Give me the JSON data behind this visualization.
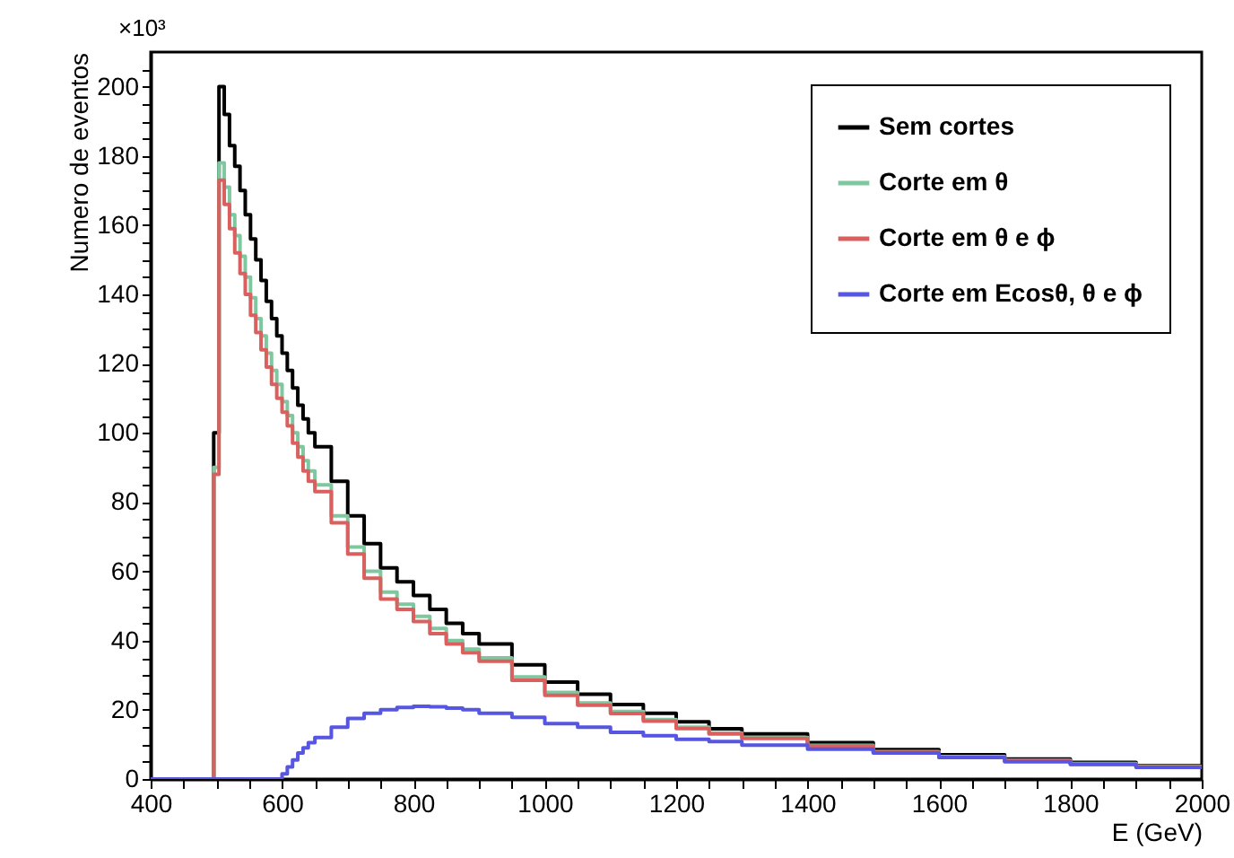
{
  "chart_data": {
    "type": "step",
    "ylabel": "Numero de eventos",
    "xlabel": "E (GeV)",
    "annotations": [
      "×10³"
    ],
    "legend": "top right",
    "xlim": [
      400,
      2000
    ],
    "ylim": [
      0,
      210
    ],
    "xticks": [
      400,
      {
        "value": 450,
        "label": null
      },
      {
        "value": 500,
        "label": null
      },
      {
        "value": 550,
        "label": null
      },
      600,
      {
        "value": 650,
        "label": null
      },
      {
        "value": 700,
        "label": null
      },
      {
        "value": 750,
        "label": null
      },
      800,
      {
        "value": 850,
        "label": null
      },
      {
        "value": 900,
        "label": null
      },
      {
        "value": 950,
        "label": null
      },
      1000,
      {
        "value": 1050,
        "label": null
      },
      {
        "value": 1100,
        "label": null
      },
      {
        "value": 1150,
        "label": null
      },
      1200,
      {
        "value": 1250,
        "label": null
      },
      {
        "value": 1300,
        "label": null
      },
      {
        "value": 1350,
        "label": null
      },
      1400,
      {
        "value": 1450,
        "label": null
      },
      {
        "value": 1500,
        "label": null
      },
      {
        "value": 1550,
        "label": null
      },
      1600,
      {
        "value": 1650,
        "label": null
      },
      {
        "value": 1700,
        "label": null
      },
      {
        "value": 1750,
        "label": null
      },
      1800,
      {
        "value": 1850,
        "label": null
      },
      {
        "value": 1900,
        "label": null
      },
      {
        "value": 1950,
        "label": null
      },
      2000
    ],
    "yticks": [
      0,
      {
        "value": 5,
        "label": null
      },
      {
        "value": 10,
        "label": null
      },
      {
        "value": 15,
        "label": null
      },
      20,
      {
        "value": 25,
        "label": null
      },
      {
        "value": 30,
        "label": null
      },
      {
        "value": 35,
        "label": null
      },
      40,
      {
        "value": 45,
        "label": null
      },
      {
        "value": 50,
        "label": null
      },
      {
        "value": 55,
        "label": null
      },
      60,
      {
        "value": 65,
        "label": null
      },
      {
        "value": 70,
        "label": null
      },
      {
        "value": 75,
        "label": null
      },
      80,
      {
        "value": 85,
        "label": null
      },
      {
        "value": 90,
        "label": null
      },
      {
        "value": 95,
        "label": null
      },
      100,
      {
        "value": 105,
        "label": null
      },
      {
        "value": 110,
        "label": null
      },
      {
        "value": 115,
        "label": null
      },
      120,
      {
        "value": 125,
        "label": null
      },
      {
        "value": 130,
        "label": null
      },
      {
        "value": 135,
        "label": null
      },
      140,
      {
        "value": 145,
        "label": null
      },
      {
        "value": 150,
        "label": null
      },
      {
        "value": 155,
        "label": null
      },
      160,
      {
        "value": 165,
        "label": null
      },
      {
        "value": 170,
        "label": null
      },
      {
        "value": 175,
        "label": null
      },
      180,
      {
        "value": 185,
        "label": null
      },
      {
        "value": 190,
        "label": null
      },
      {
        "value": 195,
        "label": null
      },
      200,
      {
        "value": 205,
        "label": null
      }
    ],
    "x": [
      400,
      496,
      504,
      512,
      520,
      528,
      536,
      544,
      552,
      560,
      568,
      576,
      584,
      592,
      600,
      608,
      616,
      624,
      632,
      640,
      650,
      675,
      700,
      725,
      750,
      775,
      800,
      825,
      850,
      875,
      900,
      950,
      1000,
      1050,
      1100,
      1150,
      1200,
      1250,
      1300,
      1400,
      1500,
      1600,
      1700,
      1800,
      1900,
      2000
    ],
    "series": [
      {
        "name": "Sem cortes",
        "color": "#000000",
        "values": [
          0,
          100,
          200,
          192,
          183,
          177,
          170,
          163,
          156,
          150,
          144,
          138,
          133,
          128,
          123,
          118,
          113,
          108,
          104,
          100,
          96,
          86,
          76,
          68,
          61,
          57,
          53,
          49,
          45,
          42,
          39,
          33,
          28,
          24.5,
          21.5,
          19,
          16.5,
          14.5,
          13,
          10.5,
          8.5,
          7,
          5.8,
          4.8,
          3.8,
          3.8
        ]
      },
      {
        "name": "Corte em θ",
        "color": "#7fc79f",
        "values": [
          0,
          90,
          178,
          171,
          163,
          157,
          151,
          145,
          139,
          133,
          128,
          123,
          118,
          114,
          109,
          105,
          100,
          96,
          92,
          89,
          85,
          76,
          67,
          60,
          54,
          50.5,
          47,
          43.5,
          40,
          37.5,
          35,
          29.5,
          25,
          22,
          19.5,
          17.2,
          15,
          13.3,
          12,
          9.7,
          7.9,
          6.5,
          5.4,
          4.5,
          3.6,
          3.6
        ]
      },
      {
        "name": "Corte em θ e ϕ",
        "color": "#d9605f",
        "values": [
          0,
          88,
          173,
          166,
          159,
          152,
          146,
          140,
          134,
          129,
          124,
          119,
          114,
          110,
          106,
          102,
          97,
          93,
          89,
          86,
          83,
          74,
          65,
          58,
          52,
          49,
          45.5,
          42,
          39,
          36.5,
          34,
          28.5,
          24.2,
          21.3,
          18.9,
          16.7,
          14.6,
          13,
          11.7,
          9.5,
          7.7,
          6.3,
          5.2,
          4.3,
          3.5,
          3.5
        ]
      },
      {
        "name": "Corte em Ecosθ, θ e ϕ",
        "color": "#5656e3",
        "values": [
          0,
          0,
          0,
          0,
          0,
          0,
          0,
          0,
          0,
          0,
          0,
          0,
          0,
          0,
          1.5,
          3.5,
          5.5,
          7.5,
          9,
          10.5,
          12,
          15,
          17.5,
          19,
          20,
          20.7,
          21,
          20.9,
          20.5,
          20,
          19,
          17.8,
          16,
          15,
          13.5,
          12.5,
          11.5,
          10.8,
          9.8,
          8.6,
          7.5,
          6.2,
          5,
          4.2,
          3.4,
          3.4
        ]
      }
    ]
  }
}
